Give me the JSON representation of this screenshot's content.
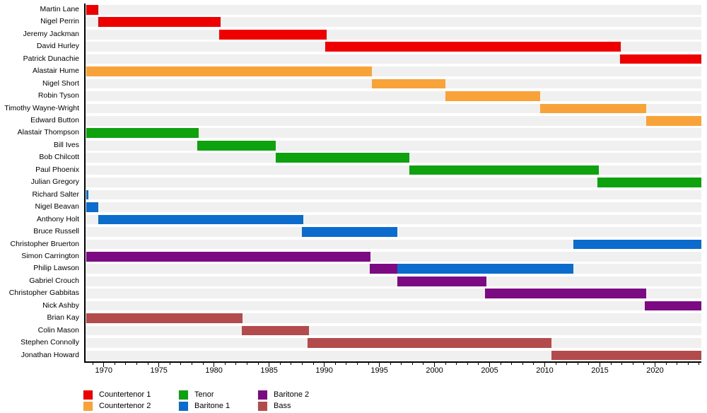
{
  "chart_data": {
    "type": "bar",
    "variant": "horizontal-gantt-timeline",
    "title": "",
    "xlabel": "",
    "ylabel": "",
    "grid": false,
    "legend_position": "bottom-left",
    "x_axis": {
      "min": 1968.35,
      "max": 2024.2,
      "minor_tick_step": 1,
      "major_ticks": [
        1970,
        1975,
        1980,
        1985,
        1990,
        1995,
        2000,
        2005,
        2010,
        2015,
        2020
      ],
      "major_tick_labels": [
        "1970",
        "1975",
        "1980",
        "1985",
        "1990",
        "1995",
        "2000",
        "2005",
        "2010",
        "2015",
        "2020"
      ]
    },
    "voice_colors": {
      "Countertenor 1": "#ee0000",
      "Countertenor 2": "#f8a33a",
      "Tenor": "#0ea30e",
      "Baritone 1": "#0b6cce",
      "Baritone 2": "#7c0a82",
      "Bass": "#b34a4c"
    },
    "track_color": "#f0f0f0",
    "axis_color": "#000000",
    "legend": {
      "columns": [
        [
          "Countertenor 1",
          "Countertenor 2"
        ],
        [
          "Tenor",
          "Baritone 1"
        ],
        [
          "Baritone 2",
          "Bass"
        ]
      ]
    },
    "members": [
      {
        "name": "Martin Lane",
        "segments": [
          {
            "part": "Countertenor 1",
            "start": 1968.4,
            "end": 1969.5
          }
        ]
      },
      {
        "name": "Nigel Perrin",
        "segments": [
          {
            "part": "Countertenor 1",
            "start": 1969.5,
            "end": 1980.6
          }
        ]
      },
      {
        "name": "Jeremy Jackman",
        "segments": [
          {
            "part": "Countertenor 1",
            "start": 1980.5,
            "end": 1990.2
          }
        ]
      },
      {
        "name": "David Hurley",
        "segments": [
          {
            "part": "Countertenor 1",
            "start": 1990.1,
            "end": 2016.9
          }
        ]
      },
      {
        "name": "Patrick Dunachie",
        "segments": [
          {
            "part": "Countertenor 1",
            "start": 2016.8,
            "end": 2024.2
          }
        ]
      },
      {
        "name": "Alastair Hume",
        "segments": [
          {
            "part": "Countertenor 2",
            "start": 1968.4,
            "end": 1994.3
          }
        ]
      },
      {
        "name": "Nigel Short",
        "segments": [
          {
            "part": "Countertenor 2",
            "start": 1994.3,
            "end": 2001.0
          }
        ]
      },
      {
        "name": "Robin Tyson",
        "segments": [
          {
            "part": "Countertenor 2",
            "start": 2001.0,
            "end": 2009.6
          }
        ]
      },
      {
        "name": "Timothy Wayne-Wright",
        "segments": [
          {
            "part": "Countertenor 2",
            "start": 2009.6,
            "end": 2019.2
          }
        ]
      },
      {
        "name": "Edward Button",
        "segments": [
          {
            "part": "Countertenor 2",
            "start": 2019.2,
            "end": 2024.2
          }
        ]
      },
      {
        "name": "Alastair Thompson",
        "segments": [
          {
            "part": "Tenor",
            "start": 1968.4,
            "end": 1978.6
          }
        ]
      },
      {
        "name": "Bill Ives",
        "segments": [
          {
            "part": "Tenor",
            "start": 1978.5,
            "end": 1985.6
          }
        ]
      },
      {
        "name": "Bob Chilcott",
        "segments": [
          {
            "part": "Tenor",
            "start": 1985.6,
            "end": 1997.7
          }
        ]
      },
      {
        "name": "Paul Phoenix",
        "segments": [
          {
            "part": "Tenor",
            "start": 1997.7,
            "end": 2014.9
          }
        ]
      },
      {
        "name": "Julian Gregory",
        "segments": [
          {
            "part": "Tenor",
            "start": 2014.8,
            "end": 2024.2
          }
        ]
      },
      {
        "name": "Richard Salter",
        "segments": [
          {
            "part": "Baritone 1",
            "start": 1968.4,
            "end": 1968.6
          }
        ]
      },
      {
        "name": "Nigel Beavan",
        "segments": [
          {
            "part": "Baritone 1",
            "start": 1968.4,
            "end": 1969.5
          }
        ]
      },
      {
        "name": "Anthony Holt",
        "segments": [
          {
            "part": "Baritone 1",
            "start": 1969.5,
            "end": 1988.1
          }
        ]
      },
      {
        "name": "Bruce Russell",
        "segments": [
          {
            "part": "Baritone 1",
            "start": 1988.0,
            "end": 1996.6
          }
        ]
      },
      {
        "name": "Christopher Bruerton",
        "segments": [
          {
            "part": "Baritone 1",
            "start": 2012.6,
            "end": 2024.2
          }
        ]
      },
      {
        "name": "Simon Carrington",
        "segments": [
          {
            "part": "Baritone 2",
            "start": 1968.4,
            "end": 1994.2
          }
        ]
      },
      {
        "name": "Philip Lawson",
        "segments": [
          {
            "part": "Baritone 2",
            "start": 1994.1,
            "end": 1996.6
          },
          {
            "part": "Baritone 1",
            "start": 1996.6,
            "end": 2012.6
          }
        ]
      },
      {
        "name": "Gabriel Crouch",
        "segments": [
          {
            "part": "Baritone 2",
            "start": 1996.6,
            "end": 2004.7
          }
        ]
      },
      {
        "name": "Christopher Gabbitas",
        "segments": [
          {
            "part": "Baritone 2",
            "start": 2004.6,
            "end": 2019.2
          }
        ]
      },
      {
        "name": "Nick Ashby",
        "segments": [
          {
            "part": "Baritone 2",
            "start": 2019.1,
            "end": 2024.2
          }
        ]
      },
      {
        "name": "Brian Kay",
        "segments": [
          {
            "part": "Bass",
            "start": 1968.4,
            "end": 1982.6
          }
        ]
      },
      {
        "name": "Colin Mason",
        "segments": [
          {
            "part": "Bass",
            "start": 1982.5,
            "end": 1988.6
          }
        ]
      },
      {
        "name": "Stephen Connolly",
        "segments": [
          {
            "part": "Bass",
            "start": 1988.5,
            "end": 2010.6
          }
        ]
      },
      {
        "name": "Jonathan Howard",
        "segments": [
          {
            "part": "Bass",
            "start": 2010.6,
            "end": 2024.2
          }
        ]
      }
    ]
  }
}
